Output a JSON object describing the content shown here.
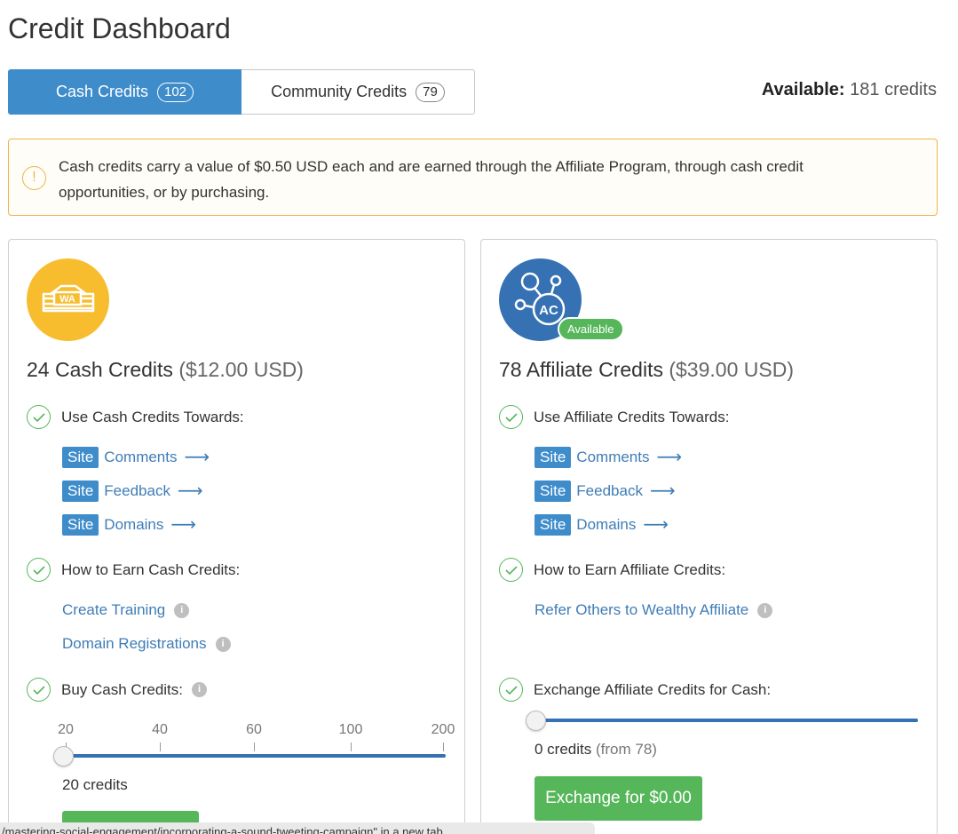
{
  "page": {
    "title": "Credit Dashboard"
  },
  "tabs": [
    {
      "label": "Cash Credits",
      "count": "102",
      "active": true
    },
    {
      "label": "Community Credits",
      "count": "79",
      "active": false
    }
  ],
  "available": {
    "label": "Available:",
    "value": "181 credits"
  },
  "alert": {
    "icon": "exclamation-icon",
    "text": "Cash credits carry a value of $0.50 USD each and are earned through the Affiliate Program, through cash credit opportunities, or by purchasing."
  },
  "cash_card": {
    "logo_text": "WA",
    "title": "24 Cash Credits",
    "usd": "($12.00 USD)",
    "use_heading": "Use Cash Credits Towards:",
    "use_links": [
      {
        "tag": "Site",
        "label": "Comments"
      },
      {
        "tag": "Site",
        "label": "Feedback"
      },
      {
        "tag": "Site",
        "label": "Domains"
      }
    ],
    "earn_heading": "How to Earn Cash Credits:",
    "earn_links": [
      "Create Training",
      "Domain Registrations"
    ],
    "buy_heading": "Buy Cash Credits:",
    "slider_ticks": [
      "20",
      "40",
      "60",
      "100",
      "200"
    ],
    "slider_value": 0,
    "credits_value": "20 credits"
  },
  "affiliate_card": {
    "logo_text": "AC",
    "badge": "Available",
    "title": "78 Affiliate Credits",
    "usd": "($39.00 USD)",
    "use_heading": "Use Affiliate Credits Towards:",
    "use_links": [
      {
        "tag": "Site",
        "label": "Comments"
      },
      {
        "tag": "Site",
        "label": "Feedback"
      },
      {
        "tag": "Site",
        "label": "Domains"
      }
    ],
    "earn_heading": "How to Earn Affiliate Credits:",
    "earn_links": [
      "Refer Others to Wealthy Affiliate"
    ],
    "exchange_heading": "Exchange Affiliate Credits for Cash:",
    "slider_value": 0,
    "credits_value": "0 credits",
    "credits_from": "(from 78)",
    "exchange_button": "Exchange for $0.00"
  },
  "status_bar": {
    "text": "/mastering-social-engagement/incorporating-a-sound-tweeting-campaign\" in a new tab"
  },
  "colors": {
    "primary": "#3f8ccb",
    "success": "#56b65a",
    "warning": "#f0b24a",
    "gold": "#f7bd2f",
    "navy": "#3571b3"
  }
}
